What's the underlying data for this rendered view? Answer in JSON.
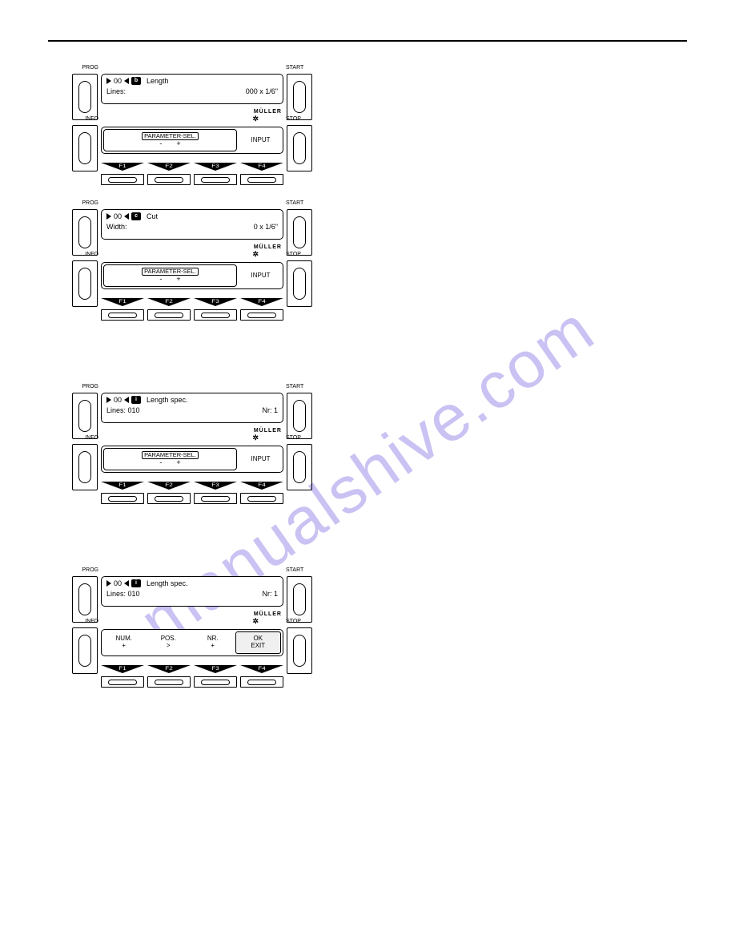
{
  "watermark": "manualshive.com",
  "brand": "MÜLLER",
  "sideLabels": {
    "prog": "PROG",
    "info": "INFO",
    "start": "START",
    "stop": "STOP"
  },
  "fkeys": [
    "F1",
    "F2",
    "F3",
    "F4"
  ],
  "panels": [
    {
      "id": "b",
      "icon": "b",
      "title": "Length",
      "line2_left": "Lines:",
      "line2_right": "000 x 1/6\"",
      "soft_mode": "param",
      "soft_group": "PARAMETER-SEL.",
      "soft_minus": "-",
      "soft_plus": "+",
      "soft_right": "INPUT"
    },
    {
      "id": "c",
      "icon": "c",
      "title": "Cut",
      "line2_left": "Width:",
      "line2_right": "0 x 1/6\"",
      "soft_mode": "param",
      "soft_group": "PARAMETER-SEL.",
      "soft_minus": "-",
      "soft_plus": "+",
      "soft_right": "INPUT"
    },
    {
      "id": "i1",
      "icon": "i",
      "title": "Length spec.",
      "line2_left": "Lines:  010",
      "line2_right": "Nr:   1",
      "soft_mode": "param",
      "soft_group": "PARAMETER-SEL.",
      "soft_minus": "-",
      "soft_plus": "+",
      "soft_right": "INPUT"
    },
    {
      "id": "i2",
      "icon": "i",
      "title": "Length spec.",
      "line2_left": "Lines:  010",
      "line2_right": "Nr:   1",
      "soft_mode": "numpos",
      "cells": [
        {
          "top": "NUM.",
          "bot": "+"
        },
        {
          "top": "POS.",
          "bot": ">"
        },
        {
          "top": "NR.",
          "bot": "+"
        },
        {
          "top": "OK",
          "bot": "EXIT",
          "boxed": true
        }
      ]
    }
  ]
}
